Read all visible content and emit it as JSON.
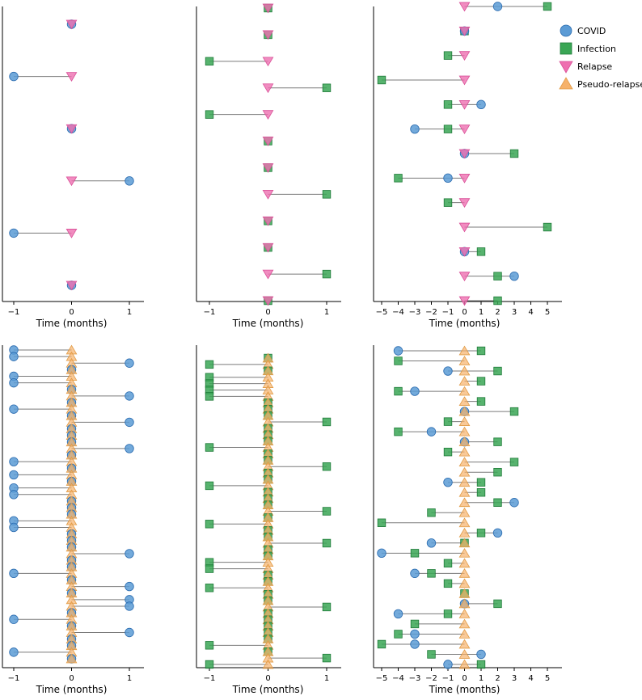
{
  "chart_data": {
    "type": "scatter",
    "description_style": "dot-connector plot",
    "colors": {
      "COVID": "#5b9bd5",
      "Infection": "#3aa655",
      "Relapse": "#ee6fb0",
      "Pseudo-relapse": "#f6b26b",
      "connector": "#7a7a7a"
    },
    "legend": {
      "position": "top-right",
      "entries": [
        {
          "label": "COVID",
          "marker": "circle"
        },
        {
          "label": "Infection",
          "marker": "square"
        },
        {
          "label": "Relapse",
          "marker": "triangle-down"
        },
        {
          "label": "Pseudo-relapse",
          "marker": "triangle-up"
        }
      ]
    },
    "panels": [
      {
        "id": "relapse-covid",
        "xlabel": "Time (months)",
        "xlim": [
          -1.2,
          1.2
        ],
        "xticks": [
          -1,
          0,
          1
        ],
        "xtick_labels": [
          "−1",
          "0",
          "1"
        ],
        "event_type": "Relapse",
        "other_type": "COVID",
        "other_times": [
          0,
          -1,
          0,
          1,
          -1,
          0
        ]
      },
      {
        "id": "relapse-infection",
        "xlabel": "Time (months)",
        "xlim": [
          -1.2,
          1.2
        ],
        "xticks": [
          -1,
          0,
          1
        ],
        "xtick_labels": [
          "−1",
          "0",
          "1"
        ],
        "event_type": "Relapse",
        "other_type": "Infection",
        "other_times": [
          0,
          0,
          -1,
          1,
          -1,
          0,
          0,
          1,
          0,
          0,
          1,
          0
        ]
      },
      {
        "id": "relapse-both",
        "xlabel": "Time (months)",
        "xlim": [
          -5.2,
          5.2
        ],
        "xticks": [
          -5,
          -4,
          -3,
          -2,
          -1,
          0,
          1,
          2,
          3,
          4,
          5
        ],
        "xtick_labels": [
          "−5",
          "−4",
          "−3",
          "−2",
          "−1",
          "0",
          "1",
          "2",
          "3",
          "4",
          "5"
        ],
        "event_type": "Relapse",
        "rows": [
          {
            "covid": 2,
            "infections": [
              5
            ]
          },
          {
            "covid": 0,
            "infections": [
              0
            ]
          },
          {
            "covid": null,
            "infections": [
              -1
            ]
          },
          {
            "covid": null,
            "infections": [
              -5
            ]
          },
          {
            "covid": 1,
            "infections": [
              -1
            ]
          },
          {
            "covid": -3,
            "infections": [
              -1
            ]
          },
          {
            "covid": 0,
            "infections": [
              3
            ]
          },
          {
            "covid": -1,
            "infections": [
              -4
            ]
          },
          {
            "covid": null,
            "infections": [
              -1
            ]
          },
          {
            "covid": null,
            "infections": [
              5
            ]
          },
          {
            "covid": 0,
            "infections": [
              1
            ]
          },
          {
            "covid": 3,
            "infections": [
              2
            ]
          },
          {
            "covid": null,
            "infections": [
              2
            ]
          }
        ]
      },
      {
        "id": "pseudo-covid",
        "xlabel": "Time (months)",
        "xlim": [
          -1.2,
          1.2
        ],
        "xticks": [
          -1,
          0,
          1
        ],
        "xtick_labels": [
          "−1",
          "0",
          "1"
        ],
        "event_type": "Pseudo-relapse",
        "other_type": "COVID",
        "other_times": [
          -1,
          -1,
          1,
          0,
          -1,
          -1,
          0,
          1,
          0,
          -1,
          0,
          1,
          0,
          0,
          0,
          1,
          0,
          -1,
          0,
          -1,
          0,
          -1,
          -1,
          0,
          0,
          0,
          -1,
          -1,
          0,
          0,
          0,
          1,
          0,
          0,
          -1,
          0,
          1,
          0,
          1,
          1,
          0,
          -1,
          0,
          1,
          0,
          0,
          -1,
          0
        ]
      },
      {
        "id": "pseudo-infection",
        "xlabel": "Time (months)",
        "xlim": [
          -1.2,
          1.2
        ],
        "xticks": [
          -1,
          0,
          1
        ],
        "xtick_labels": [
          "−1",
          "0",
          "1"
        ],
        "event_type": "Pseudo-relapse",
        "other_type": "Infection",
        "other_times": [
          0,
          -1,
          0,
          -1,
          -1,
          -1,
          -1,
          0,
          0,
          0,
          1,
          0,
          0,
          0,
          -1,
          0,
          0,
          1,
          0,
          0,
          -1,
          0,
          0,
          0,
          1,
          0,
          -1,
          0,
          0,
          1,
          0,
          0,
          -1,
          -1,
          0,
          0,
          -1,
          0,
          0,
          1,
          0,
          0,
          0,
          0,
          0,
          -1,
          0,
          1,
          -1
        ]
      },
      {
        "id": "pseudo-both",
        "xlabel": "Time (months)",
        "xlim": [
          -5.2,
          5.2
        ],
        "xticks": [
          -5,
          -4,
          -3,
          -2,
          -1,
          0,
          1,
          2,
          3,
          4,
          5
        ],
        "xtick_labels": [
          "−5",
          "−4",
          "−3",
          "−2",
          "−1",
          "0",
          "1",
          "2",
          "3",
          "4",
          "5"
        ],
        "event_type": "Pseudo-relapse",
        "rows": [
          {
            "covid": -4,
            "infections": [
              1
            ]
          },
          {
            "covid": null,
            "infections": [
              -4
            ]
          },
          {
            "covid": -1,
            "infections": [
              2
            ]
          },
          {
            "covid": null,
            "infections": [
              1
            ]
          },
          {
            "covid": -3,
            "infections": [
              -4
            ]
          },
          {
            "covid": null,
            "infections": [
              1
            ]
          },
          {
            "covid": 0,
            "infections": [
              3
            ]
          },
          {
            "covid": null,
            "infections": [
              -1
            ]
          },
          {
            "covid": -2,
            "infections": [
              -4
            ]
          },
          {
            "covid": 0,
            "infections": [
              2
            ]
          },
          {
            "covid": null,
            "infections": [
              -1
            ]
          },
          {
            "covid": null,
            "infections": [
              3
            ]
          },
          {
            "covid": null,
            "infections": [
              2
            ]
          },
          {
            "covid": -1,
            "infections": [
              1
            ]
          },
          {
            "covid": null,
            "infections": [
              1
            ]
          },
          {
            "covid": 3,
            "infections": [
              2
            ]
          },
          {
            "covid": null,
            "infections": [
              -2
            ]
          },
          {
            "covid": null,
            "infections": [
              -5
            ]
          },
          {
            "covid": 2,
            "infections": [
              1
            ]
          },
          {
            "covid": -2,
            "infections": [
              0
            ]
          },
          {
            "covid": -5,
            "infections": [
              -3
            ]
          },
          {
            "covid": null,
            "infections": [
              -1
            ]
          },
          {
            "covid": -3,
            "infections": [
              -2
            ]
          },
          {
            "covid": null,
            "infections": [
              -1
            ]
          },
          {
            "covid": null,
            "infections": [
              0
            ]
          },
          {
            "covid": 0,
            "infections": [
              2
            ]
          },
          {
            "covid": -4,
            "infections": [
              -1
            ]
          },
          {
            "covid": null,
            "infections": [
              -3
            ]
          },
          {
            "covid": -3,
            "infections": [
              -4
            ]
          },
          {
            "covid": -3,
            "infections": [
              -5
            ]
          },
          {
            "covid": 1,
            "infections": [
              -2
            ]
          },
          {
            "covid": -1,
            "infections": [
              1
            ]
          }
        ]
      }
    ]
  }
}
